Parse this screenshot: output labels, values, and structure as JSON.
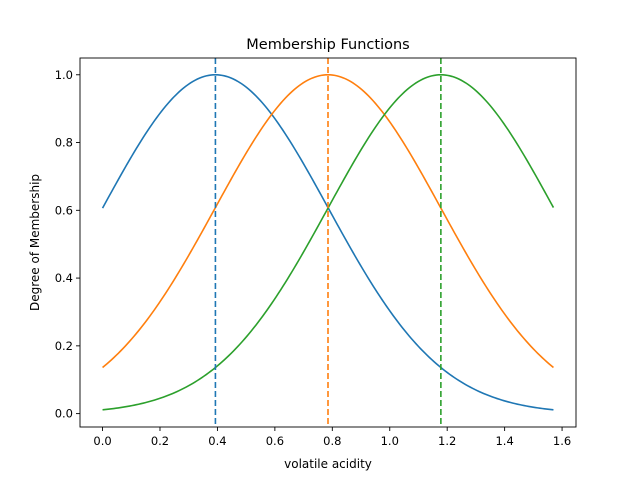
{
  "chart_data": {
    "type": "line",
    "title": "Membership Functions",
    "xlabel": "volatile acidity",
    "ylabel": "Degree of Membership",
    "xlim": [
      -0.0785,
      1.6485
    ],
    "ylim": [
      -0.0395,
      1.0495
    ],
    "xticks": [
      0.0,
      0.2,
      0.4,
      0.6,
      0.8,
      1.0,
      1.2,
      1.4,
      1.6
    ],
    "xtick_labels": [
      "0.0",
      "0.2",
      "0.4",
      "0.6",
      "0.8",
      "1.0",
      "1.2",
      "1.4",
      "1.6"
    ],
    "yticks": [
      0.0,
      0.2,
      0.4,
      0.6,
      0.8,
      1.0
    ],
    "ytick_labels": [
      "0.0",
      "0.2",
      "0.4",
      "0.6",
      "0.8",
      "1.0"
    ],
    "grid": false,
    "legend": "none",
    "x_range": [
      0.0,
      1.57
    ],
    "series": [
      {
        "center": 0.393,
        "sigma": 0.393,
        "color": "#1f77b4",
        "values_at_samples": {
          "x": [
            0.0,
            0.2,
            0.4,
            0.6,
            0.8,
            1.0,
            1.2,
            1.4,
            1.57
          ],
          "y": [
            0.607,
            0.886,
            1.0,
            0.87,
            0.585,
            0.303,
            0.122,
            0.037,
            0.012
          ]
        }
      },
      {
        "center": 0.785,
        "sigma": 0.393,
        "color": "#ff7f0e",
        "values_at_samples": {
          "x": [
            0.0,
            0.2,
            0.4,
            0.6,
            0.8,
            1.0,
            1.2,
            1.4,
            1.57
          ],
          "y": [
            0.135,
            0.33,
            0.619,
            0.895,
            0.999,
            0.861,
            0.573,
            0.294,
            0.137
          ]
        }
      },
      {
        "center": 1.178,
        "sigma": 0.393,
        "color": "#2ca02c",
        "values_at_samples": {
          "x": [
            0.0,
            0.2,
            0.4,
            0.6,
            0.8,
            1.0,
            1.2,
            1.4,
            1.57
          ],
          "y": [
            0.011,
            0.045,
            0.141,
            0.339,
            0.63,
            0.902,
            0.998,
            0.852,
            0.608
          ]
        }
      }
    ],
    "vlines": [
      {
        "x": 0.393,
        "color": "#1f77b4",
        "style": "dashed"
      },
      {
        "x": 0.785,
        "color": "#ff7f0e",
        "style": "dashed"
      },
      {
        "x": 1.178,
        "color": "#2ca02c",
        "style": "dashed"
      }
    ]
  }
}
